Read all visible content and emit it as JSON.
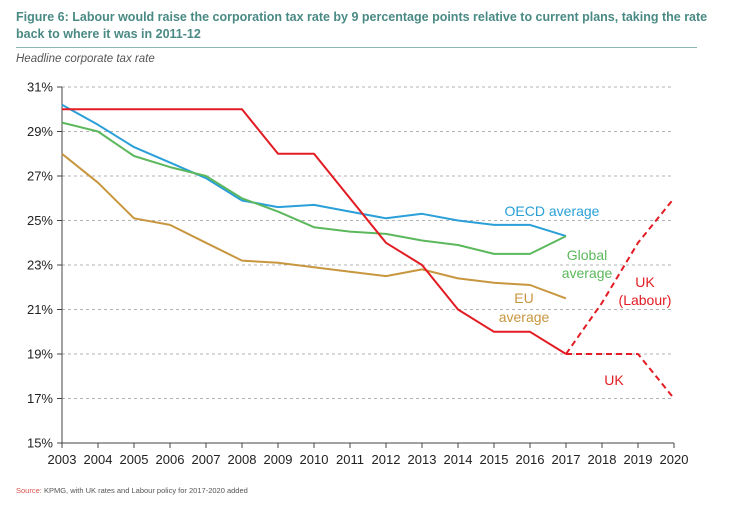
{
  "title": "Figure 6: Labour would raise the corporation tax rate by 9 percentage points relative to current plans, taking the rate back to where it was in 2011-12",
  "subtitle": "Headline corporate tax rate",
  "source": {
    "label": "Source:",
    "text": " KPMG, with UK rates and Labour policy for 2017-2020 added"
  },
  "chart_data": {
    "type": "line",
    "x": [
      2003,
      2004,
      2005,
      2006,
      2007,
      2008,
      2009,
      2010,
      2011,
      2012,
      2013,
      2014,
      2015,
      2016,
      2017,
      2018,
      2019,
      2020
    ],
    "xlim": [
      2003,
      2020
    ],
    "ylim": [
      15,
      31
    ],
    "yticks": [
      15,
      17,
      19,
      21,
      23,
      25,
      27,
      29,
      31
    ],
    "ytick_labels": [
      "15%",
      "17%",
      "19%",
      "21%",
      "23%",
      "25%",
      "27%",
      "29%",
      "31%"
    ],
    "grid": "horizontal dashed",
    "series": [
      {
        "name": "OECD average",
        "label_lines": [
          "OECD average"
        ],
        "color": "#2a9fd8",
        "style": "solid",
        "step": false,
        "points": [
          [
            2003,
            30.2
          ],
          [
            2004,
            29.3
          ],
          [
            2005,
            28.3
          ],
          [
            2006,
            27.6
          ],
          [
            2007,
            26.9
          ],
          [
            2008,
            25.9
          ],
          [
            2009,
            25.6
          ],
          [
            2010,
            25.7
          ],
          [
            2011,
            25.4
          ],
          [
            2012,
            25.1
          ],
          [
            2013,
            25.3
          ],
          [
            2014,
            25.0
          ],
          [
            2015,
            24.8
          ],
          [
            2016,
            24.8
          ],
          [
            2017,
            24.3
          ]
        ]
      },
      {
        "name": "Global average",
        "label_lines": [
          "Global",
          "average"
        ],
        "color": "#5cb85c",
        "style": "solid",
        "step": false,
        "points": [
          [
            2003,
            29.4
          ],
          [
            2004,
            29.0
          ],
          [
            2005,
            27.9
          ],
          [
            2006,
            27.4
          ],
          [
            2007,
            27.0
          ],
          [
            2008,
            26.0
          ],
          [
            2009,
            25.4
          ],
          [
            2010,
            24.7
          ],
          [
            2011,
            24.5
          ],
          [
            2012,
            24.4
          ],
          [
            2013,
            24.1
          ],
          [
            2014,
            23.9
          ],
          [
            2015,
            23.5
          ],
          [
            2016,
            23.5
          ],
          [
            2017,
            24.3
          ]
        ]
      },
      {
        "name": "EU average",
        "label_lines": [
          "EU",
          "average"
        ],
        "color": "#c8963e",
        "style": "solid",
        "step": false,
        "points": [
          [
            2003,
            28.0
          ],
          [
            2004,
            26.7
          ],
          [
            2005,
            25.1
          ],
          [
            2006,
            24.8
          ],
          [
            2007,
            24.0
          ],
          [
            2008,
            23.2
          ],
          [
            2009,
            23.1
          ],
          [
            2010,
            22.9
          ],
          [
            2011,
            22.7
          ],
          [
            2012,
            22.5
          ],
          [
            2013,
            22.8
          ],
          [
            2014,
            22.4
          ],
          [
            2015,
            22.2
          ],
          [
            2016,
            22.1
          ],
          [
            2017,
            21.5
          ]
        ]
      },
      {
        "name": "UK",
        "label_lines": [
          "UK"
        ],
        "color": "#e31b23",
        "style": "solid",
        "step": false,
        "points": [
          [
            2003,
            30
          ],
          [
            2008,
            30
          ],
          [
            2009,
            28
          ],
          [
            2010,
            28
          ],
          [
            2012,
            24
          ],
          [
            2013,
            23
          ],
          [
            2014,
            21
          ],
          [
            2015,
            20
          ],
          [
            2016,
            20
          ],
          [
            2017,
            19
          ]
        ]
      },
      {
        "name": "UK",
        "label_lines": [
          "UK"
        ],
        "color": "#e31b23",
        "style": "dashed",
        "step": false,
        "points": [
          [
            2017,
            19
          ],
          [
            2019,
            19
          ],
          [
            2020,
            17
          ]
        ]
      },
      {
        "name": "UK (Labour)",
        "label_lines": [
          "UK",
          "(Labour)"
        ],
        "color": "#e31b23",
        "style": "dashed",
        "step": false,
        "points": [
          [
            2017,
            19
          ],
          [
            2018,
            21.3
          ],
          [
            2019,
            24
          ],
          [
            2020,
            26
          ]
        ]
      }
    ]
  }
}
